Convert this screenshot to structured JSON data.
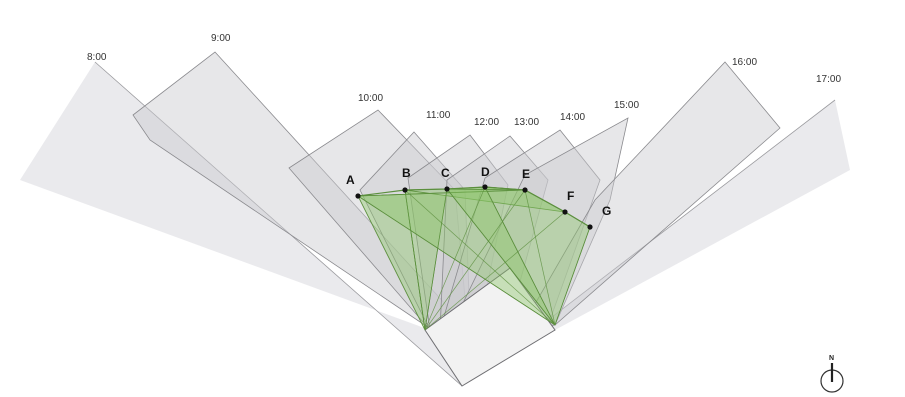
{
  "colors": {
    "shadow_fill": "#c9c9cf",
    "shadow_stroke": "#8a8a8e",
    "green_fill": "#8dc56a",
    "green_stroke": "#5b8f3d",
    "point": "#111111",
    "building_fill": "#f2f2f2"
  },
  "time_labels": [
    "8:00",
    "9:00",
    "10:00",
    "11:00",
    "12:00",
    "13:00",
    "14:00",
    "15:00",
    "16:00",
    "17:00"
  ],
  "points": [
    "A",
    "B",
    "C",
    "D",
    "E",
    "F",
    "G"
  ],
  "north_label": "N",
  "icons": {
    "north_arrow": "north-arrow-icon"
  }
}
